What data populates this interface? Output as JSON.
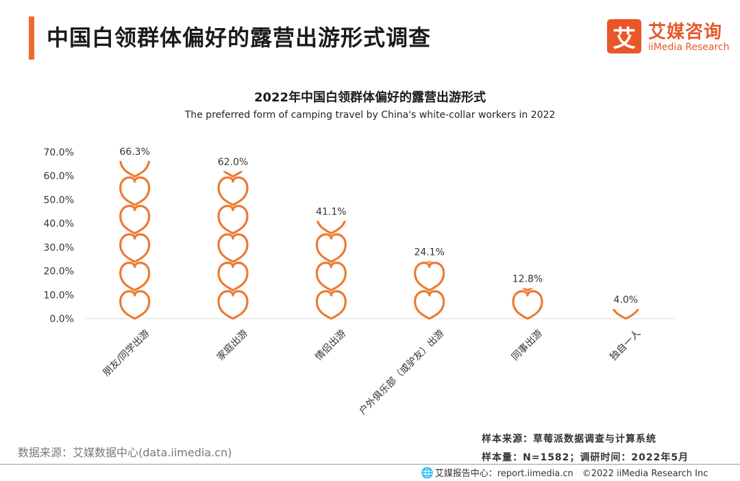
{
  "header": {
    "title": "中国白领群体偏好的露营出游形式调查",
    "logo_mark": "艾",
    "logo_cn": "艾媒咨询",
    "logo_en": "iiMedia Research"
  },
  "chart_data": {
    "type": "bar",
    "title": "2022年中国白领群体偏好的露营出游形式",
    "subtitle": "The preferred form of camping travel by China's white-collar workers in 2022",
    "categories": [
      "朋友/同学出游",
      "家庭出游",
      "情侣出游",
      "户外俱乐部（或驴友）出游",
      "同事出游",
      "独自一人"
    ],
    "values": [
      66.3,
      62.0,
      41.1,
      24.1,
      12.8,
      4.0
    ],
    "value_labels": [
      "66.3%",
      "62.0%",
      "41.1%",
      "24.1%",
      "12.8%",
      "4.0%"
    ],
    "y_ticks": [
      "0.0%",
      "10.0%",
      "20.0%",
      "30.0%",
      "40.0%",
      "50.0%",
      "60.0%",
      "70.0%"
    ],
    "ylim": [
      0,
      70
    ],
    "marker": "heart-outline",
    "bar_color": "#ec7a32",
    "grid": false
  },
  "sources": {
    "left": "数据来源：艾媒数据中心(data.iimedia.cn)",
    "sample_source": "样本来源：草莓派数据调查与计算系统",
    "sample_size": "样本量：N=1582；调研时间：2022年5月"
  },
  "footer": {
    "text": "艾媒报告中心：report.iimedia.cn　©2022  iiMedia Research  Inc"
  }
}
